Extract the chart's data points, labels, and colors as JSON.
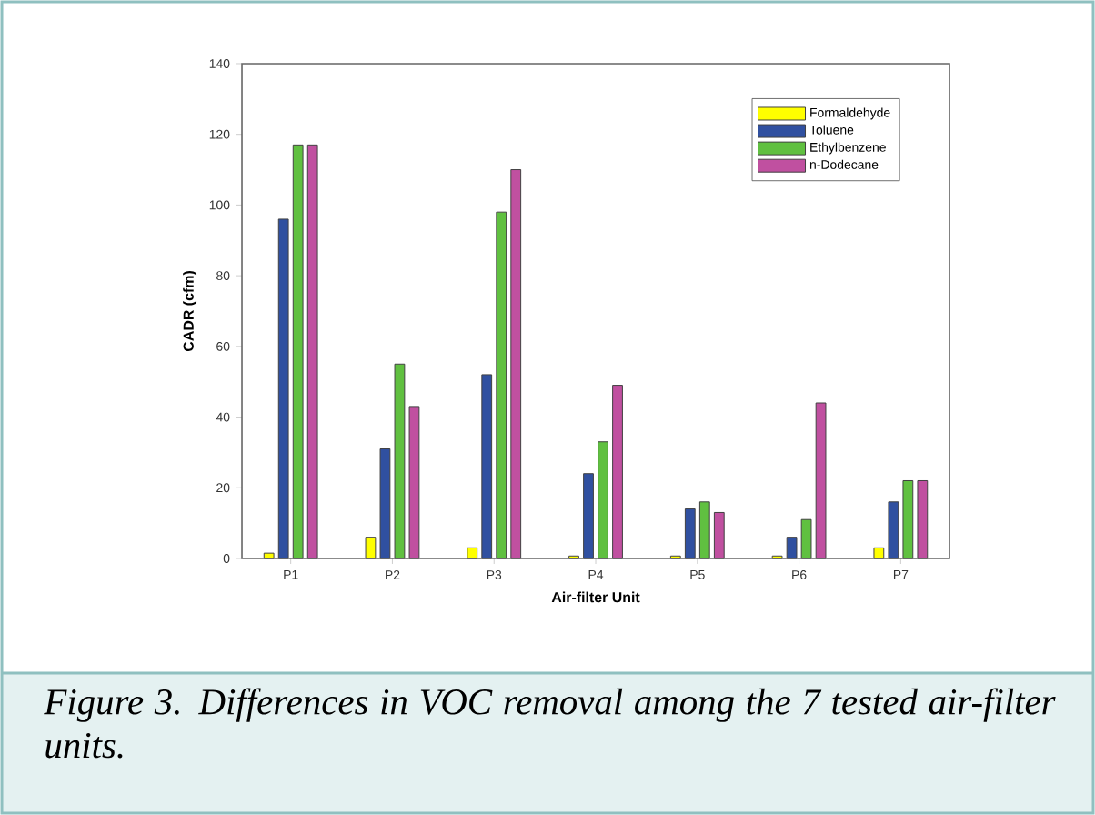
{
  "chart_data": {
    "type": "bar",
    "xlabel": "Air-filter Unit",
    "ylabel": "CADR (cfm)",
    "categories": [
      "P1",
      "P2",
      "P3",
      "P4",
      "P5",
      "P6",
      "P7"
    ],
    "series": [
      {
        "name": "Formaldehyde",
        "color": "#ffff00",
        "values": [
          1.5,
          6,
          3,
          0.7,
          0.7,
          0.7,
          3
        ]
      },
      {
        "name": "Toluene",
        "color": "#3050a0",
        "values": [
          96,
          31,
          52,
          24,
          14,
          6,
          16
        ]
      },
      {
        "name": "Ethylbenzene",
        "color": "#60c040",
        "values": [
          117,
          55,
          98,
          33,
          16,
          11,
          22
        ]
      },
      {
        "name": "n-Dodecane",
        "color": "#c050a0",
        "values": [
          117,
          43,
          110,
          49,
          13,
          44,
          22
        ]
      }
    ],
    "ylim": [
      0,
      140
    ],
    "yticks": [
      0,
      20,
      40,
      60,
      80,
      100,
      120,
      140
    ],
    "legend": "top right",
    "grid": false,
    "annotations": [
      "*Figure 3. Differences in VOC removal among the 7 tested air-filter units.*"
    ]
  }
}
